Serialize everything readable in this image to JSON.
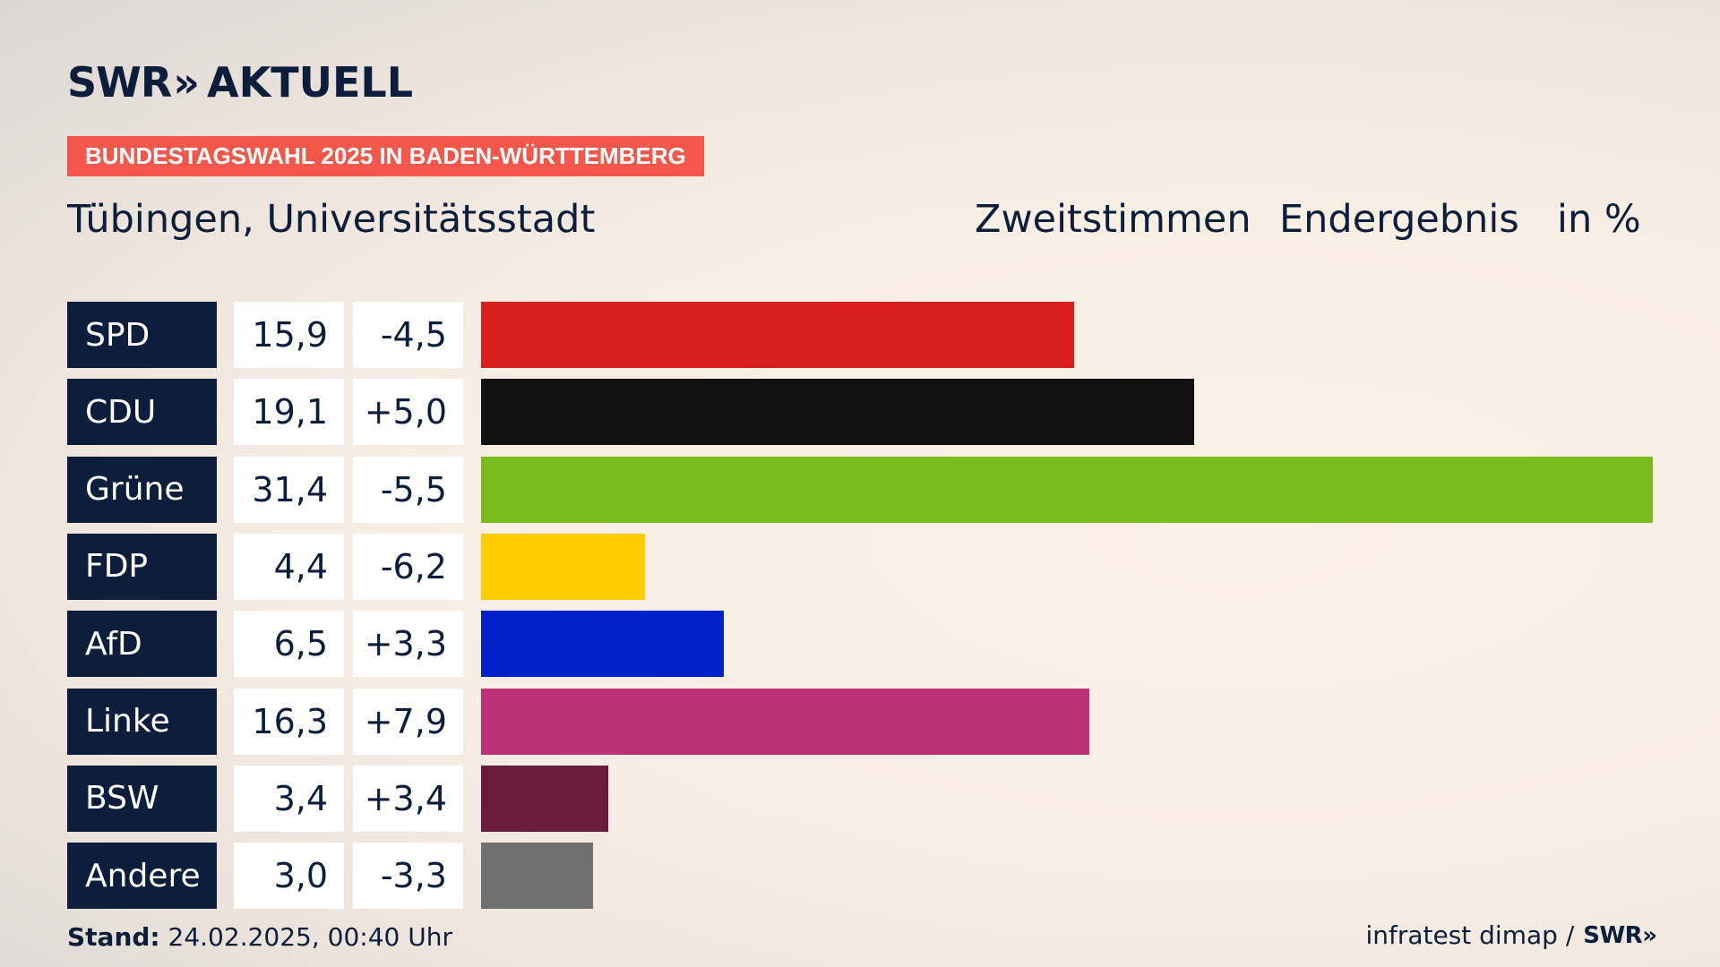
{
  "brand": {
    "swr": "SWR",
    "chevrons": "»",
    "aktuell": "AKTUELL"
  },
  "banner": "BUNDESTAGSWAHL 2025 IN BADEN-WÜRTTEMBERG",
  "header": {
    "place": "Tübingen, Universitätsstadt",
    "vote_type": "Zweitstimmen",
    "status": "Endergebnis",
    "unit": "in %"
  },
  "chart_data": {
    "type": "bar",
    "orientation": "horizontal",
    "categories": [
      "SPD",
      "CDU",
      "Grüne",
      "FDP",
      "AfD",
      "Linke",
      "BSW",
      "Andere"
    ],
    "values": [
      15.9,
      19.1,
      31.4,
      4.4,
      6.5,
      16.3,
      3.4,
      3.0
    ],
    "value_labels": [
      "15,9",
      "19,1",
      "31,4",
      "4,4",
      "6,5",
      "16,3",
      "3,4",
      "3,0"
    ],
    "diff_labels": [
      "-4,5",
      "+5,0",
      "-5,5",
      "-6,2",
      "+3,3",
      "+7,9",
      "+3,4",
      "-3,3"
    ],
    "colors": [
      "#d91e1e",
      "#111111",
      "#78bc1e",
      "#ffcc00",
      "#0021c8",
      "#bc3075",
      "#6a1a3c",
      "#707070"
    ],
    "xlim": [
      0,
      31.4
    ]
  },
  "footer": {
    "stand_label": "Stand:",
    "stand_value": "24.02.2025, 00:40 Uhr",
    "source": "infratest dimap /",
    "source_brand": "SWR",
    "source_chevrons": "»"
  }
}
